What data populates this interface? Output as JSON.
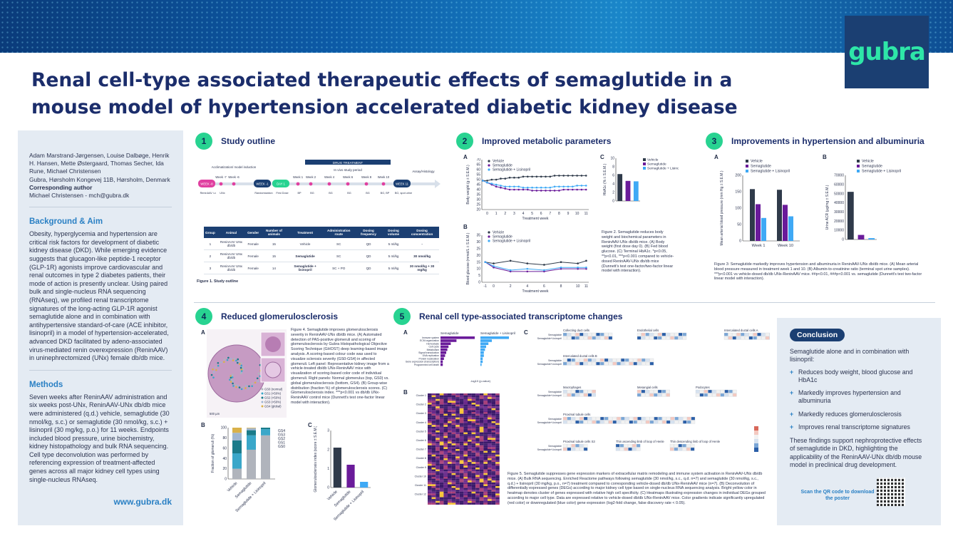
{
  "title": "Renal cell-type associated therapeutic effects of semaglutide in a mouse model of hypertension accelerated diabetic kidney disease",
  "logo": "gubra",
  "authors": {
    "names": "Adam Marstrand-Jørgensen, Louise Dalbøge, Henrik H. Hansen, Mette Østergaard, Thomas Secher, Ida Rune, Michael Christensen",
    "affiliation": "Gubra, Hørsholm Kongevej 11B, Hørsholm, Denmark",
    "corr_label": "Corresponding author",
    "corr": "Michael Christensen - mch@gubra.dk"
  },
  "background": {
    "heading": "Background & Aim",
    "text": "Obesity, hyperglycemia and hypertension are critical risk factors for development of diabetic kidney disease (DKD). While emerging evidence suggests that glucagon-like peptide-1 receptor (GLP-1R) agonists improve cardiovascular and renal outcomes in type 2 diabetes patients, their mode of action is presently unclear. Using paired bulk and single-nucleus RNA sequencing (RNAseq), we profiled renal transcriptome signatures of the long-acting GLP-1R agonist semaglutide alone and in combination with antihypertensive standard-of-care (ACE inhibitor, lisinopril) in a model of hypertension-accelerated, advanced DKD facilitated by adeno-associated virus-mediated renin overexpression (ReninAAV) in uninephrectomized (UNx) female db/db mice."
  },
  "methods": {
    "heading": "Methods",
    "text": "Seven weeks after ReninAAV administration and six weeks post-UNx, ReninAAV-UNx db/db mice were administered (q.d.) vehicle, semaglutide (30 nmol/kg, s.c.) or semaglutide (30 nmol/kg, s.c.) + lisinopril (30 mg/kg, p.o.) for 11 weeks. Endpoints included blood pressure, urine biochemistry, kidney histopathology and bulk RNA sequencing. Cell type deconvolution was performed by referencing expression of treatment-affected genes across all major kidney cell types using single-nucleus RNAseq."
  },
  "website": "www.gubra.dk",
  "panels": {
    "p1": {
      "num": "1",
      "title": "Study outline"
    },
    "p2": {
      "num": "2",
      "title": "Improved metabolic parameters"
    },
    "p3": {
      "num": "3",
      "title": "Improvements in hypertension and albuminuria"
    },
    "p4": {
      "num": "4",
      "title": "Reduced glomerulosclerosis"
    },
    "p5": {
      "num": "5",
      "title": "Renal cell type-associated transcriptome changes"
    }
  },
  "timeline": {
    "drug_treatment": "DRUG TREATMENT",
    "in_vivo": "In vivo study period",
    "acclim": "Acclimatization/ model induction",
    "assay": "Assay/Histology",
    "weeks": [
      "WEEK -8",
      "Week -7",
      "Week -6",
      "WEEK -1",
      "DAY 1",
      "Week 1",
      "Week 2",
      "Week 4",
      "Week 6",
      "Week 8",
      "Week 10",
      "WEEK 11"
    ],
    "events": [
      "ReninAAV i.v.",
      "UNx",
      "Randomization",
      "First Dose",
      "BP",
      "BG",
      "BG",
      "BG",
      "BG",
      "BG, BP",
      "BG, spot urine"
    ],
    "figure": "Figure 1. Study outline"
  },
  "study_table": {
    "headers": [
      "Group",
      "Animal",
      "Gender",
      "Number of animals",
      "Treatment",
      "Administration route",
      "Dosing frequency",
      "Dosing volume",
      "Dosing concentration"
    ],
    "rows": [
      [
        "1",
        "ReninAAV UNx db/db",
        "Female",
        "15",
        "Vehicle",
        "SC",
        "QD",
        "5 ml/kg",
        "-"
      ],
      [
        "2",
        "ReninAAV UNx db/db",
        "Female",
        "15",
        "Semaglutide",
        "SC",
        "QD",
        "5 ml/kg",
        "30 nmol/kg"
      ],
      [
        "3",
        "ReninAAV UNx db/db",
        "Female",
        "14",
        "Semaglutide + lisinopril",
        "SC + PO",
        "QD",
        "5 ml/kg",
        "30 nmol/kg + 30 mg/kg"
      ]
    ]
  },
  "legend": {
    "vehicle": "Vehicle",
    "sema": "Semaglutide",
    "combo": "Semaglutide + Lisinopril"
  },
  "colors": {
    "vehicle": "#2f3a4a",
    "sema": "#6a1b9a",
    "combo": "#3fa9f5",
    "accent": "#28d391",
    "navy": "#1b3f72"
  },
  "fig2_caption": "Figure 2. Semaglutide reduces body weight and biochemical parameters in ReninAAV-UNx db/db mice. (A) Body weight (first dose day 0). (B) Fed blood glucose. (C) Terminal HbA1c. *p<0.05, **p<0.01, ***p<0.001 compared to vehicle-dosed ReninAAV-UNx db/db mice (Dunnett's test one-factor/two-factor linear model with interaction).",
  "fig3_caption": "Figure 3: Semaglutide markedly improves hypertension and albuminuria in ReninAAV-UNx db/db mice. (A) Mean arterial blood pressure measured in treatment week 1 and 10. (B) Albumin-to-creatinine ratio (terminal spot urine samples). ***p<0.001 vs vehicle-dosed db/db UNx-ReninAAV mice. ##p<0.01, ###p<0.001 vs. semaglutide (Dunnett's test two-factor linear model with interaction).",
  "fig4_caption": "Figure 4. Semaglutide improves glomerulosclerosis severity in ReninAAV-UNx db/db mice. (A) Automated detection of PAS-positive glomeruli and scoring of glomerulosclerosis by Gubra Histopathological Objective Scoring Technique (GHOST) deep learning-based image analysis. A scoring-based colour code was used to visualize sclerosis severity (GS0-GS4) in affected glomeruli. Left panel: Representative kidney image from a vehicle-treated db/db UNx-ReninAAV mice with visualization of scoring-based color code of individual glomeruli. Right panels: Normal glomerulus (top, GS0) vs. global glomerulosclerosis (bottom, GS4). (B) Group-wise distribution (fraction %) of glomerulosclerosis scores. (C) Glomerulosclerosis index. ***p<0.001 vs db/db UNx-ReninAAV control mice (Dunnett's test one-factor linear model with interaction).",
  "fig5_caption": "Figure 5. Semaglutide suppresses gene expression markers of extracellular matrix remodeling and immune system activation in ReninAAV-UNx db/db mice. (A) Bulk RNA sequencing. Enriched Reactome pathways following semaglutide (30 nmol/kg, s.c., q.d. n=7) and semaglutide (30 nmol/kg, s.c., q.d.) + lisinopril (30 mg/kg, p.o., n=7) treatment compared to corresponding vehicle-dosed db/db UNx-ReninAAV mice (n=7). (B) Deconvolution of differentially expressed genes (DEGs) according to major kidney cell type based on single-nucleus RNA sequencing analysis. Bright yellow color in heatmap denotes cluster of genes expressed with relative high cell specificity. (C) Heatmaps illustrating expression changes in individual DEGs grouped according to major cell type. Data are expressed relative to vehicle-dosed db/db UNx-ReninAAV mice. Color gradients indicate significantly upregulated (red color) or downregulated (blue color) gene expression (log2-fold change, false discovery rate < 0.05).",
  "fig4_legend": [
    "GS0 (normal)",
    "GS1 (<50%)",
    "GS2 (<50%)",
    "GS3 (>50%)",
    "GS4 (global)"
  ],
  "fig4_scalebar": "500 µm",
  "fig5_cells": [
    "Collecting duct cells",
    "Endothelial cells",
    "Intercalated ductal cells A",
    "Intercalated ductal cells B",
    "Macrophages",
    "Mesangial cells",
    "Podocytes",
    "Proximal tubule cells",
    "Proximal tubule cells S3",
    "Thin ascending limb of loop of Henle",
    "Thin descending limb of loop of Henle",
    "Non-specific"
  ],
  "fig5_pathways": [
    "Immune system",
    "ECM organization",
    "Hemostasis",
    "Cell cycle",
    "Metabolism",
    "Signal transduction",
    "DNA replication",
    "Protein localization",
    "Gene expression (transcription)",
    "Programmed cell death"
  ],
  "fig5_a_labels": {
    "sema": "Semaglutide",
    "combo": "Semaglutide + Lisinopril",
    "xlabel": "-log10 (p-value)"
  },
  "fig5_clusters": [
    "Cluster 1",
    "Cluster 2",
    "Cluster 3",
    "Cluster 4",
    "Cluster 5",
    "Cluster 6",
    "Cluster 7",
    "Cluster 8",
    "Cluster 9",
    "Cluster 10",
    "Cluster 11",
    "Cluster 12"
  ],
  "fig5_row_labels": [
    "Semaglutide",
    "Semaglutide+Lisinopril"
  ],
  "conclusion": {
    "heading": "Conclusion",
    "intro": "Semaglutide alone and in combination with lisinopril:",
    "items": [
      "Reduces body weight, blood glucose and HbA1c",
      "Markedly improves hypertension and albuminuria",
      "Markedly reduces glomerulosclerosis",
      "Improves renal transcriptome signatures"
    ],
    "outro": "These findings support nephroprotective effects of semaglutide in DKD, highlighting the applicability of the ReninAAV-UNx db/db mouse model in preclinical drug development.",
    "qr_text": "Scan the QR code to download the poster"
  },
  "chart_data": [
    {
      "id": "2A",
      "type": "line",
      "title": "",
      "xlabel": "Treatment week",
      "ylabel": "Body weight (g ± S.E.M.)",
      "ylim": [
        20,
        70
      ],
      "yticks": [
        20,
        25,
        30,
        35,
        40,
        45,
        50,
        55,
        60,
        65,
        70
      ],
      "xticks": [
        0,
        1,
        2,
        3,
        4,
        5,
        6,
        7,
        8,
        9,
        10,
        11
      ],
      "x": [
        -0.5,
        0,
        0.5,
        1,
        1.5,
        2,
        2.5,
        3,
        3.5,
        4,
        4.5,
        5,
        5.5,
        6,
        6.5,
        7,
        7.5,
        8,
        8.5,
        9,
        9.5,
        10,
        10.5,
        11
      ],
      "series": [
        {
          "name": "Vehicle",
          "values": [
            49,
            49,
            50,
            50,
            51,
            51,
            52,
            52,
            52,
            53,
            53,
            53,
            53,
            53,
            53,
            53,
            54,
            54,
            54,
            54,
            54,
            54,
            54,
            54
          ]
        },
        {
          "name": "Semaglutide",
          "values": [
            49,
            47,
            45,
            43,
            42,
            41,
            40,
            40,
            40,
            40,
            40,
            39,
            39,
            39,
            39,
            39,
            39,
            39,
            40,
            40,
            40,
            40,
            40,
            40
          ]
        },
        {
          "name": "Semaglutide + Lisinopril",
          "values": [
            49,
            47,
            46,
            45,
            44,
            43,
            43,
            43,
            43,
            42,
            42,
            42,
            42,
            42,
            42,
            42,
            43,
            43,
            43,
            43,
            43,
            44,
            44,
            44
          ]
        }
      ]
    },
    {
      "id": "2B",
      "type": "line",
      "title": "",
      "xlabel": "Treatment week",
      "ylabel": "Blood glucose (mmol/L ± S.E.M.)",
      "ylim": [
        0,
        35
      ],
      "yticks": [
        0,
        5,
        10,
        15,
        20,
        25,
        30,
        35
      ],
      "x": [
        -1,
        0,
        2,
        4,
        6,
        8,
        10,
        11
      ],
      "xticks": [
        -1,
        0,
        2,
        4,
        6,
        8,
        10,
        11
      ],
      "series": [
        {
          "name": "Vehicle",
          "values": [
            15,
            14,
            16,
            14,
            13,
            15,
            14,
            16
          ]
        },
        {
          "name": "Semaglutide",
          "values": [
            15,
            11,
            8,
            8,
            8,
            10,
            10,
            10
          ]
        },
        {
          "name": "Semaglutide + Lisinopril",
          "values": [
            15,
            12,
            9,
            10,
            9,
            11,
            11,
            11
          ]
        }
      ]
    },
    {
      "id": "2C",
      "type": "bar",
      "title": "",
      "ylabel": "HbA1c (% ± S.E.M.)",
      "ylim": [
        0,
        10
      ],
      "yticks": [
        0,
        2,
        4,
        6,
        8,
        10
      ],
      "categories": [
        "Vehicle",
        "Semaglutide",
        "Semaglutide + Lisinopril"
      ],
      "values": [
        6.3,
        4.7,
        4.6
      ]
    },
    {
      "id": "3A",
      "type": "bar",
      "title": "",
      "ylabel": "Mean arterial blood pressure (mm Hg ± S.E.M.)",
      "ylim": [
        0,
        200
      ],
      "yticks": [
        0,
        50,
        100,
        150,
        200
      ],
      "categories": [
        "Week 1",
        "Week 10"
      ],
      "series": [
        {
          "name": "Vehicle",
          "values": [
            158,
            156
          ]
        },
        {
          "name": "Semaglutide",
          "values": [
            112,
            110
          ]
        },
        {
          "name": "Semaglutide + Lisinopril",
          "values": [
            70,
            75
          ]
        }
      ]
    },
    {
      "id": "3B",
      "type": "bar",
      "title": "",
      "ylabel": "Urine ACR (µg/mg ± S.E.M.)",
      "ylim": [
        0,
        70000
      ],
      "yticks": [
        0,
        10000,
        20000,
        30000,
        40000,
        50000,
        60000,
        70000
      ],
      "categories": [
        "Vehicle",
        "Semaglutide",
        "Semaglutide + Lisinopril"
      ],
      "values": [
        52000,
        5000,
        1500
      ]
    },
    {
      "id": "4B",
      "type": "bar",
      "title": "",
      "ylabel": "Fraction of glomeruli (%)",
      "ylim": [
        0,
        100
      ],
      "yticks": [
        0,
        20,
        40,
        60,
        80,
        100
      ],
      "categories": [
        "Vehicle",
        "Semaglutide",
        "Semaglutide + Lisinopril"
      ],
      "series": [
        {
          "name": "GS0",
          "values": [
            20,
            57,
            85
          ]
        },
        {
          "name": "GS1",
          "values": [
            30,
            28,
            12
          ]
        },
        {
          "name": "GS2",
          "values": [
            25,
            10,
            3
          ]
        },
        {
          "name": "GS3",
          "values": [
            15,
            4,
            0
          ]
        },
        {
          "name": "GS4",
          "values": [
            10,
            1,
            0
          ]
        }
      ]
    },
    {
      "id": "4C",
      "type": "bar",
      "title": "",
      "ylabel": "Glomerulosclerosis index (score ± S.E.M.)",
      "ylim": [
        0,
        3
      ],
      "yticks": [
        0,
        1,
        2,
        3
      ],
      "categories": [
        "Vehicle",
        "Semaglutide",
        "Semaglutide + Lisinopril"
      ],
      "values": [
        2.1,
        1.2,
        0.3
      ]
    },
    {
      "id": "5A",
      "type": "bar",
      "title": "",
      "xlabel": "-log10 (p-value)",
      "categories": [
        "Immune system",
        "ECM organization",
        "Hemostasis",
        "Cell cycle",
        "Metabolism",
        "Signal transduction",
        "DNA replication",
        "Protein localization",
        "Gene expression (transcription)",
        "Programmed cell death"
      ],
      "series": [
        {
          "name": "Semaglutide",
          "values": [
            30,
            14,
            9,
            7,
            6,
            5,
            4,
            3,
            2,
            2
          ]
        },
        {
          "name": "Semaglutide + Lisinopril",
          "values": [
            25,
            10,
            7,
            5,
            4,
            3,
            3,
            2,
            2,
            1
          ]
        }
      ]
    }
  ]
}
